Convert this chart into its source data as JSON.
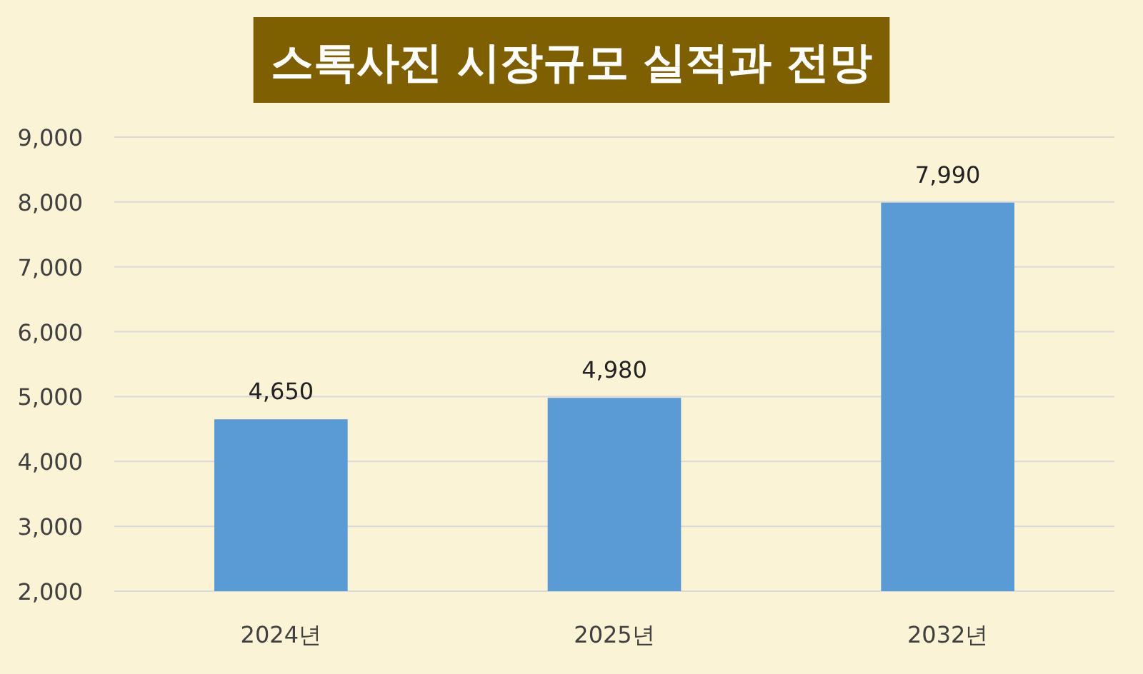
{
  "chart_data": {
    "type": "bar",
    "title": "스톡사진 시장규모 실적과 전망",
    "categories": [
      "2024년",
      "2025년",
      "2032년"
    ],
    "values": [
      4650,
      4980,
      7990
    ],
    "value_labels": [
      "4,650",
      "4,980",
      "7,990"
    ],
    "color": "#5b9bd5",
    "ylim": [
      2000,
      9000
    ],
    "yticks": [
      {
        "value": 2000,
        "label": "2,000"
      },
      {
        "value": 3000,
        "label": "3,000"
      },
      {
        "value": 4000,
        "label": "4,000"
      },
      {
        "value": 5000,
        "label": "5,000"
      },
      {
        "value": 6000,
        "label": "6,000"
      },
      {
        "value": 7000,
        "label": "7,000"
      },
      {
        "value": 8000,
        "label": "8,000"
      },
      {
        "value": 9000,
        "label": "9,000"
      }
    ],
    "grid": "y"
  }
}
